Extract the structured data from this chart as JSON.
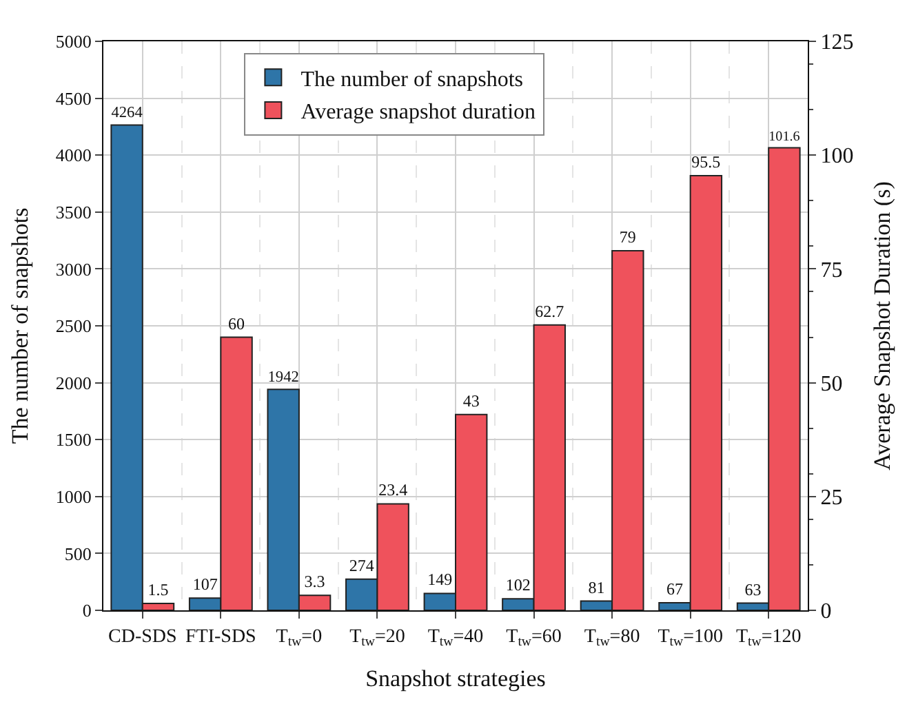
{
  "chart_data": {
    "type": "bar",
    "xlabel": "Snapshot strategies",
    "ylabel": "The number of snapshots",
    "y2label": "Average Snapshot Duration (s)",
    "categories": [
      "CD-SDS",
      "FTI-SDS",
      "T$_{tw}$=0",
      "T$_{tw}$=20",
      "T$_{tw}$=40",
      "T$_{tw}$=60",
      "T$_{tw}$=80",
      "T$_{tw}$=100",
      "T$_{tw}$=120"
    ],
    "series": [
      {
        "name": "The number of snapshots",
        "color": "#2e75a8",
        "values": [
          4264,
          107,
          1942,
          274,
          149,
          102,
          81,
          67,
          63
        ]
      },
      {
        "name": "Average snapshot duration",
        "color": "#ef525c",
        "axis": "y2",
        "values": [
          1.5,
          60,
          3.3,
          23.4,
          43,
          62.7,
          79,
          95.5,
          101.6
        ]
      }
    ],
    "ylim": [
      0,
      5000
    ],
    "yticks": [
      0,
      500,
      1000,
      1500,
      2000,
      2500,
      3000,
      3500,
      4000,
      4500,
      5000
    ],
    "y2lim": [
      0,
      125
    ],
    "y2ticks": [
      0,
      25,
      50,
      75,
      100,
      125
    ],
    "data_labels": true,
    "grid": true,
    "legend": "top left"
  }
}
